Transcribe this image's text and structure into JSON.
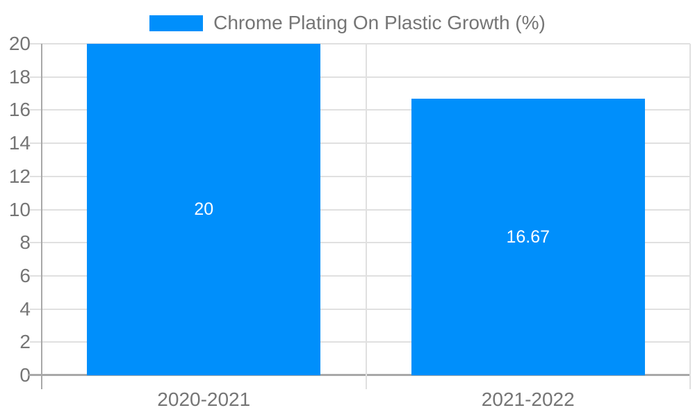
{
  "chart_data": {
    "type": "bar",
    "title": "Chrome Plating On Plastic Growth (%)",
    "categories": [
      "2020-2021",
      "2021-2022"
    ],
    "series": [
      {
        "name": "Chrome Plating On Plastic Growth (%)",
        "values": [
          20,
          16.67
        ]
      }
    ],
    "value_labels": [
      "20",
      "16.67"
    ],
    "xlabel": "",
    "ylabel": "",
    "ylim": [
      0,
      20
    ],
    "ytick_step": 2,
    "yticks": [
      0,
      2,
      4,
      6,
      8,
      10,
      12,
      14,
      16,
      18,
      20
    ],
    "grid": true,
    "legend_position": "top",
    "bar_width_fraction": 0.72,
    "colors": {
      "bar": "#008ffb",
      "grid": "#e0e0e0",
      "axis": "#a8a8a8",
      "tick_text": "#757575",
      "value_label": "#ffffff",
      "background": "#ffffff"
    }
  }
}
